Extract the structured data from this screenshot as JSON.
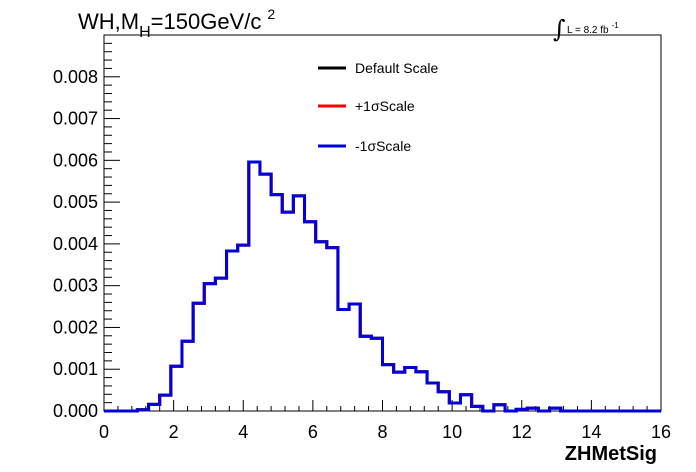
{
  "chart_data": {
    "type": "line",
    "title_main": "WH,M",
    "title_sub": "H",
    "title_rest": "=150GeV/c",
    "title_sup": "2",
    "lumi_symbol": "∫",
    "lumi_text": "L = 8.2 fb",
    "lumi_sup": "-1",
    "xlabel": "ZHMetSig",
    "xlim": [
      0,
      16
    ],
    "ylim": [
      0,
      0.009
    ],
    "x_ticks": [
      "0",
      "2",
      "4",
      "6",
      "8",
      "10",
      "12",
      "14",
      "16"
    ],
    "y_ticks": [
      "0.000",
      "0.001",
      "0.002",
      "0.003",
      "0.004",
      "0.005",
      "0.006",
      "0.007",
      "0.008"
    ],
    "bin_width": 0.32,
    "x_bin_edges_start": 0,
    "series": [
      {
        "name": "Default Scale",
        "color": "#000000",
        "values": [
          0,
          0,
          0,
          3e-05,
          0.00016,
          0.00038,
          0.00107,
          0.00167,
          0.00258,
          0.00305,
          0.00318,
          0.00383,
          0.00397,
          0.00596,
          0.00567,
          0.00518,
          0.00476,
          0.00515,
          0.00453,
          0.00405,
          0.00391,
          0.00243,
          0.00256,
          0.00179,
          0.00174,
          0.00111,
          0.00093,
          0.00104,
          0.00094,
          0.00067,
          0.00046,
          0.00019,
          0.00039,
          0.00011,
          0,
          0.00015,
          0,
          4e-05,
          7e-05,
          0,
          7e-05,
          0,
          0,
          0,
          0,
          0,
          0,
          0,
          0,
          0
        ]
      },
      {
        "name": "+1σScale",
        "color": "#ff0000",
        "values": [
          0,
          0,
          0,
          3e-05,
          0.00016,
          0.00038,
          0.00107,
          0.00167,
          0.00258,
          0.00305,
          0.00318,
          0.00383,
          0.00397,
          0.00596,
          0.00567,
          0.00518,
          0.00476,
          0.00515,
          0.00453,
          0.00405,
          0.00391,
          0.00243,
          0.00256,
          0.00179,
          0.00174,
          0.00111,
          0.00093,
          0.00104,
          0.00094,
          0.00067,
          0.00046,
          0.00019,
          0.00039,
          0.00011,
          0,
          0.00015,
          0,
          4e-05,
          7e-05,
          0,
          7e-05,
          0,
          0,
          0,
          0,
          0,
          0,
          0,
          0,
          0
        ]
      },
      {
        "name": "-1σScale",
        "color": "#0000dd",
        "values": [
          0,
          0,
          0,
          3e-05,
          0.00016,
          0.00038,
          0.00107,
          0.00167,
          0.00258,
          0.00305,
          0.00318,
          0.00383,
          0.00397,
          0.00596,
          0.00567,
          0.00518,
          0.00476,
          0.00515,
          0.00453,
          0.00405,
          0.00391,
          0.00243,
          0.00256,
          0.00179,
          0.00174,
          0.00111,
          0.00093,
          0.00104,
          0.00094,
          0.00067,
          0.00046,
          0.00019,
          0.00039,
          0.00011,
          0,
          0.00015,
          0,
          4e-05,
          7e-05,
          0,
          7e-05,
          0,
          0,
          0,
          0,
          0,
          0,
          0,
          0,
          0
        ]
      }
    ],
    "legend_placement": "top-center",
    "grid": false
  }
}
